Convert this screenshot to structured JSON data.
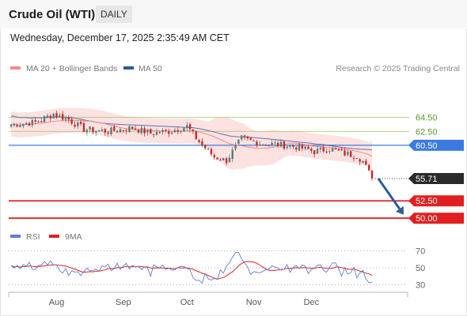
{
  "header": {
    "title": "Crude Oil (WTI)",
    "period_label": "DAILY",
    "date_label": "Wednesday, December 17, 2025 2:35:49 AM CET",
    "credit": "Research © 2025 Trading Central"
  },
  "colors": {
    "price_up": "#5a7a7a",
    "price_down": "#c42a2a",
    "ma20": "#f08a8a",
    "bollinger_fill": "#fde2e2",
    "ma50": "#2d5a9a",
    "resistance": "#9ac56a",
    "pivot": "#3b7be0",
    "support": "#e02020",
    "last_price": "#2b2b2b",
    "arrow": "#2d5a9a",
    "rsi": "#5b7fd6",
    "rsi_ma": "#e02020"
  },
  "chart_data": [
    {
      "type": "candlestick",
      "legend": [
        {
          "name": "MA 20 + Bollinger Bands",
          "color": "#f08a8a"
        },
        {
          "name": "MA 50",
          "color": "#2d5a9a"
        }
      ],
      "x_labels": [
        "Aug",
        "Sep",
        "Oct",
        "Nov",
        "Dec"
      ],
      "ylim": [
        49.0,
        70.6
      ],
      "levels": [
        {
          "label": "64.50",
          "value": 64.5,
          "kind": "resistance"
        },
        {
          "label": "62.50",
          "value": 62.5,
          "kind": "resistance"
        },
        {
          "label": "60.50",
          "value": 60.5,
          "kind": "pivot"
        },
        {
          "label": "55.71",
          "value": 55.71,
          "kind": "last"
        },
        {
          "label": "52.50",
          "value": 52.5,
          "kind": "support"
        },
        {
          "label": "50.00",
          "value": 50.0,
          "kind": "support"
        }
      ],
      "last_price": 55.71,
      "forecast_arrow": {
        "from": 55.7,
        "to": 50.5
      },
      "candle_count": 120
    },
    {
      "type": "line",
      "legend": [
        {
          "name": "RSI",
          "color": "#5b7fd6"
        },
        {
          "name": "9MA",
          "color": "#e02020"
        }
      ],
      "ylim": [
        25,
        75
      ],
      "ticks": [
        {
          "label": "70",
          "value": 70
        },
        {
          "label": "50",
          "value": 50
        },
        {
          "label": "30",
          "value": 30
        }
      ],
      "last_rsi": 33
    }
  ]
}
